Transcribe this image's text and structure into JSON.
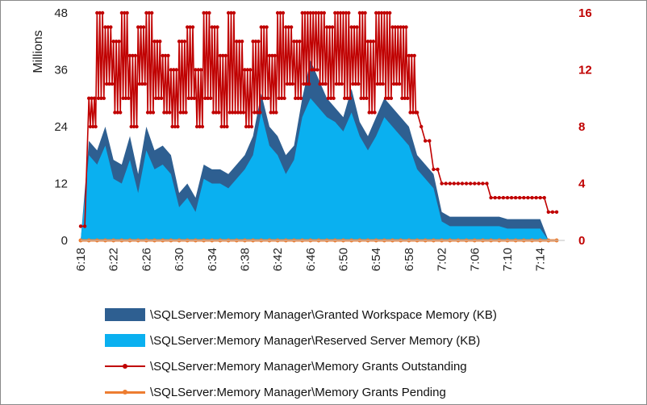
{
  "chart_data": {
    "type": "area+line",
    "title": "",
    "xlabel": "",
    "ylabel": "Millions",
    "x_tick_labels": [
      "6:18",
      "6:22",
      "6:26",
      "6:30",
      "6:34",
      "6:38",
      "6:42",
      "6:46",
      "6:50",
      "6:54",
      "6:58",
      "7:02",
      "7:06",
      "7:10",
      "7:14"
    ],
    "y_left": {
      "lim": [
        0,
        48
      ],
      "ticks": [
        0,
        12,
        24,
        36,
        48
      ]
    },
    "y_right": {
      "lim": [
        0,
        16
      ],
      "ticks": [
        0,
        4,
        8,
        12,
        16
      ]
    },
    "x_minutes": [
      18,
      19,
      20,
      21,
      22,
      23,
      24,
      25,
      26,
      27,
      28,
      29,
      30,
      31,
      32,
      33,
      34,
      35,
      36,
      37,
      38,
      39,
      40,
      41,
      42,
      43,
      44,
      45,
      46,
      47,
      48,
      49,
      50,
      51,
      52,
      53,
      54,
      55,
      56,
      57,
      58,
      59,
      60,
      61,
      62,
      63,
      64,
      65,
      66,
      67,
      68,
      69,
      70,
      71,
      72,
      73,
      74,
      75,
      76
    ],
    "series": [
      {
        "name": "\\SQLServer:Memory Manager\\Granted Workspace Memory (KB)",
        "type": "area",
        "axis": "left",
        "color": "#2e5f91",
        "values": [
          0,
          21,
          19,
          24,
          17,
          16,
          22,
          14,
          24,
          19,
          20,
          18,
          10,
          12,
          9,
          16,
          15,
          15,
          14,
          16,
          18,
          22,
          31,
          24,
          22,
          18,
          20,
          30,
          38,
          34,
          30,
          28,
          26,
          32,
          25,
          22,
          26,
          30,
          28,
          26,
          24,
          18,
          16,
          14,
          6,
          5,
          5,
          5,
          5,
          5,
          5,
          5,
          4.5,
          4.5,
          4.5,
          4.5,
          4.5,
          0,
          0
        ]
      },
      {
        "name": "\\SQLServer:Memory Manager\\Reserved Server Memory (KB)",
        "type": "area",
        "axis": "left",
        "color": "#0ab0f0",
        "values": [
          0,
          18,
          16,
          20,
          13,
          12,
          17,
          10,
          19,
          15,
          16,
          14,
          7,
          9,
          6,
          13,
          12,
          12,
          11,
          13,
          15,
          18,
          27,
          20,
          18,
          14,
          17,
          26,
          30,
          28,
          26,
          25,
          23,
          27,
          22,
          19,
          22,
          26,
          24,
          22,
          20,
          15,
          13,
          11,
          4,
          3,
          3,
          3,
          3,
          3,
          3,
          3,
          2.5,
          2.5,
          2.5,
          2.5,
          2.5,
          0,
          0
        ]
      },
      {
        "name": "\\SQLServer:Memory Manager\\Memory Grants Outstanding",
        "type": "line",
        "axis": "right",
        "color": "#c00000",
        "values": [
          1,
          10,
          16,
          15,
          14,
          16,
          13,
          15,
          16,
          14,
          13,
          12,
          14,
          15,
          12,
          16,
          15,
          13,
          16,
          14,
          12,
          14,
          15,
          13,
          16,
          15,
          14,
          16,
          16,
          16,
          15,
          16,
          16,
          15,
          16,
          14,
          16,
          16,
          15,
          15,
          13,
          9,
          7,
          5,
          4,
          4,
          4,
          4,
          4,
          4,
          3,
          3,
          3,
          3,
          3,
          3,
          3,
          2,
          2
        ],
        "low_envelope": [
          1,
          8,
          10,
          11,
          9,
          10,
          8,
          11,
          9,
          10,
          9,
          8,
          9,
          10,
          8,
          10,
          9,
          8,
          9,
          9,
          8,
          9,
          10,
          9,
          10,
          11,
          10,
          11,
          12,
          11,
          10,
          11,
          10,
          11,
          10,
          9,
          11,
          10,
          11,
          10,
          9,
          8,
          7,
          5,
          4,
          4,
          4,
          4,
          4,
          4,
          3,
          3,
          3,
          3,
          3,
          3,
          3,
          2,
          2
        ]
      },
      {
        "name": "\\SQLServer:Memory Manager\\Memory Grants Pending",
        "type": "line",
        "axis": "right",
        "color": "#ed7d31",
        "values": [
          0,
          0,
          0,
          0,
          0,
          0,
          0,
          0,
          0,
          0,
          0,
          0,
          0,
          0,
          0,
          0,
          0,
          0,
          0,
          0,
          0,
          0,
          0,
          0,
          0,
          0,
          0,
          0,
          0,
          0,
          0,
          0,
          0,
          0,
          0,
          0,
          0,
          0,
          0,
          0,
          0,
          0,
          0,
          0,
          0,
          0,
          0,
          0,
          0,
          0,
          0,
          0,
          0,
          0,
          0,
          0,
          0,
          0,
          0
        ]
      }
    ],
    "legend_position": "bottom",
    "grid": false
  }
}
